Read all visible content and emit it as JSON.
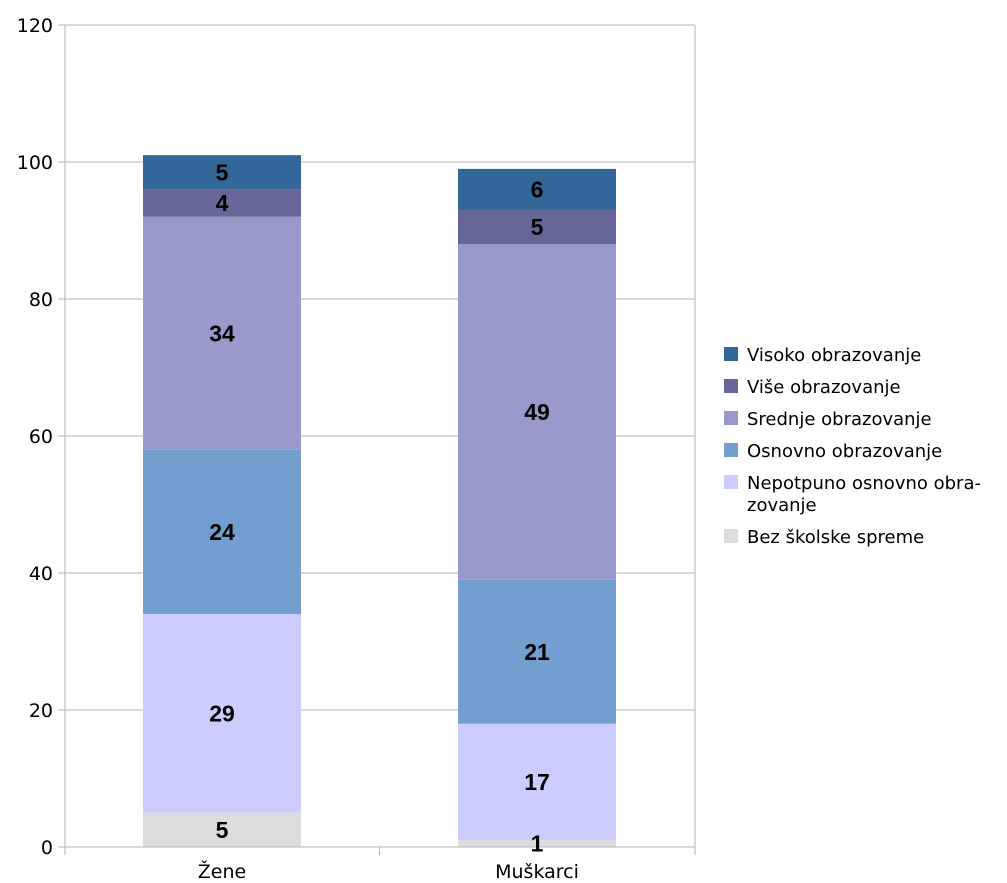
{
  "chart_data": {
    "type": "bar",
    "stacked": true,
    "categories": [
      "Žene",
      "Muškarci"
    ],
    "series": [
      {
        "name": "Bez školske spreme",
        "values": [
          5,
          1
        ],
        "color": "#dcdcdc"
      },
      {
        "name": "Nepotpuno osnovno obrazovanje",
        "legend_lines": [
          "Nepotpuno osnovno obra-",
          "zovanje"
        ],
        "values": [
          29,
          17
        ],
        "color": "#ccccff"
      },
      {
        "name": "Osnovno obrazovanje",
        "values": [
          24,
          21
        ],
        "color": "#729fcf"
      },
      {
        "name": "Srednje obrazovanje",
        "values": [
          34,
          49
        ],
        "color": "#9999cc"
      },
      {
        "name": "Više obrazovanje",
        "values": [
          4,
          5
        ],
        "color": "#666699"
      },
      {
        "name": "Visoko obrazovanje",
        "values": [
          5,
          6
        ],
        "color": "#336699"
      }
    ],
    "ylim": [
      0,
      120
    ],
    "yticks": [
      0,
      20,
      40,
      60,
      80,
      100,
      120
    ],
    "grid": true,
    "legend_position": "right",
    "title": "",
    "xlabel": "",
    "ylabel": ""
  }
}
